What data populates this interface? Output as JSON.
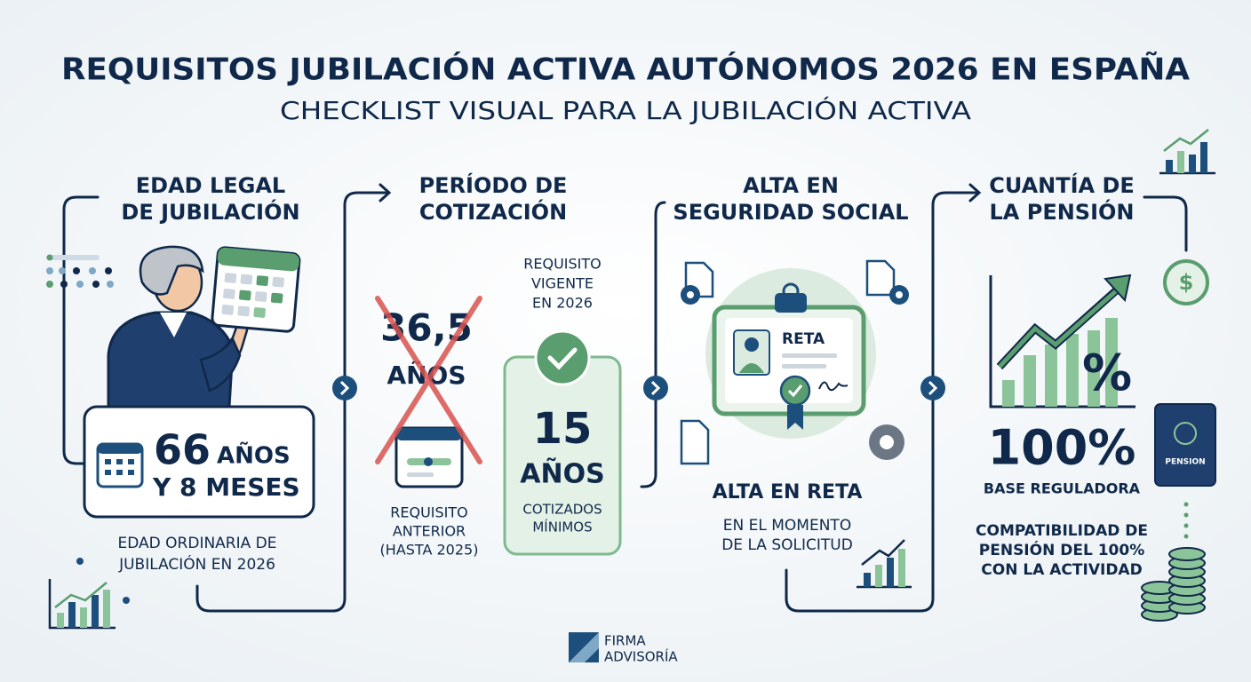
{
  "header": {
    "title": "REQUISITOS JUBILACIÓN ACTIVA AUTÓNOMOS 2026 EN ESPAÑA",
    "subtitle": "CHECKLIST VISUAL PARA LA JUBILACIÓN ACTIVA"
  },
  "steps": [
    {
      "heading": [
        "EDAD LEGAL",
        "DE JUBILACIÓN"
      ],
      "value": "66",
      "unit": "AÑOS",
      "value_extra": "Y 8 MESES",
      "caption": [
        "EDAD ORDINARIA DE",
        "JUBILACIÓN EN 2026"
      ]
    },
    {
      "heading": [
        "PERÍODO DE",
        "COTIZACIÓN"
      ],
      "previous": {
        "value": "36,5",
        "unit": "AÑOS",
        "caption": [
          "REQUISITO",
          "ANTERIOR",
          "(HASTA 2025)"
        ]
      },
      "current": {
        "label": [
          "REQUISITO",
          "VIGENTE",
          "EN 2026"
        ],
        "value": "15",
        "unit": "AÑOS",
        "caption": [
          "COTIZADOS",
          "MÍNIMOS"
        ]
      }
    },
    {
      "heading": [
        "ALTA EN",
        "SEGURIDAD SOCIAL"
      ],
      "card_label": "RETA",
      "value": "ALTA EN RETA",
      "caption": [
        "EN EL MOMENTO",
        "DE LA SOLICITUD"
      ]
    },
    {
      "heading": [
        "CUANTÍA DE",
        "LA PENSIÓN"
      ],
      "chart_symbol": "%",
      "currency_symbol": "$",
      "value": "100%",
      "value_caption": "BASE REGULADORA",
      "caption": [
        "COMPATIBILIDAD DE",
        "PENSIÓN DEL 100%",
        "CON LA ACTIVIDAD"
      ],
      "passport_label": "PENSION"
    }
  ],
  "footer": {
    "logo": [
      "FIRMA",
      "ADVISORÍA"
    ]
  }
}
